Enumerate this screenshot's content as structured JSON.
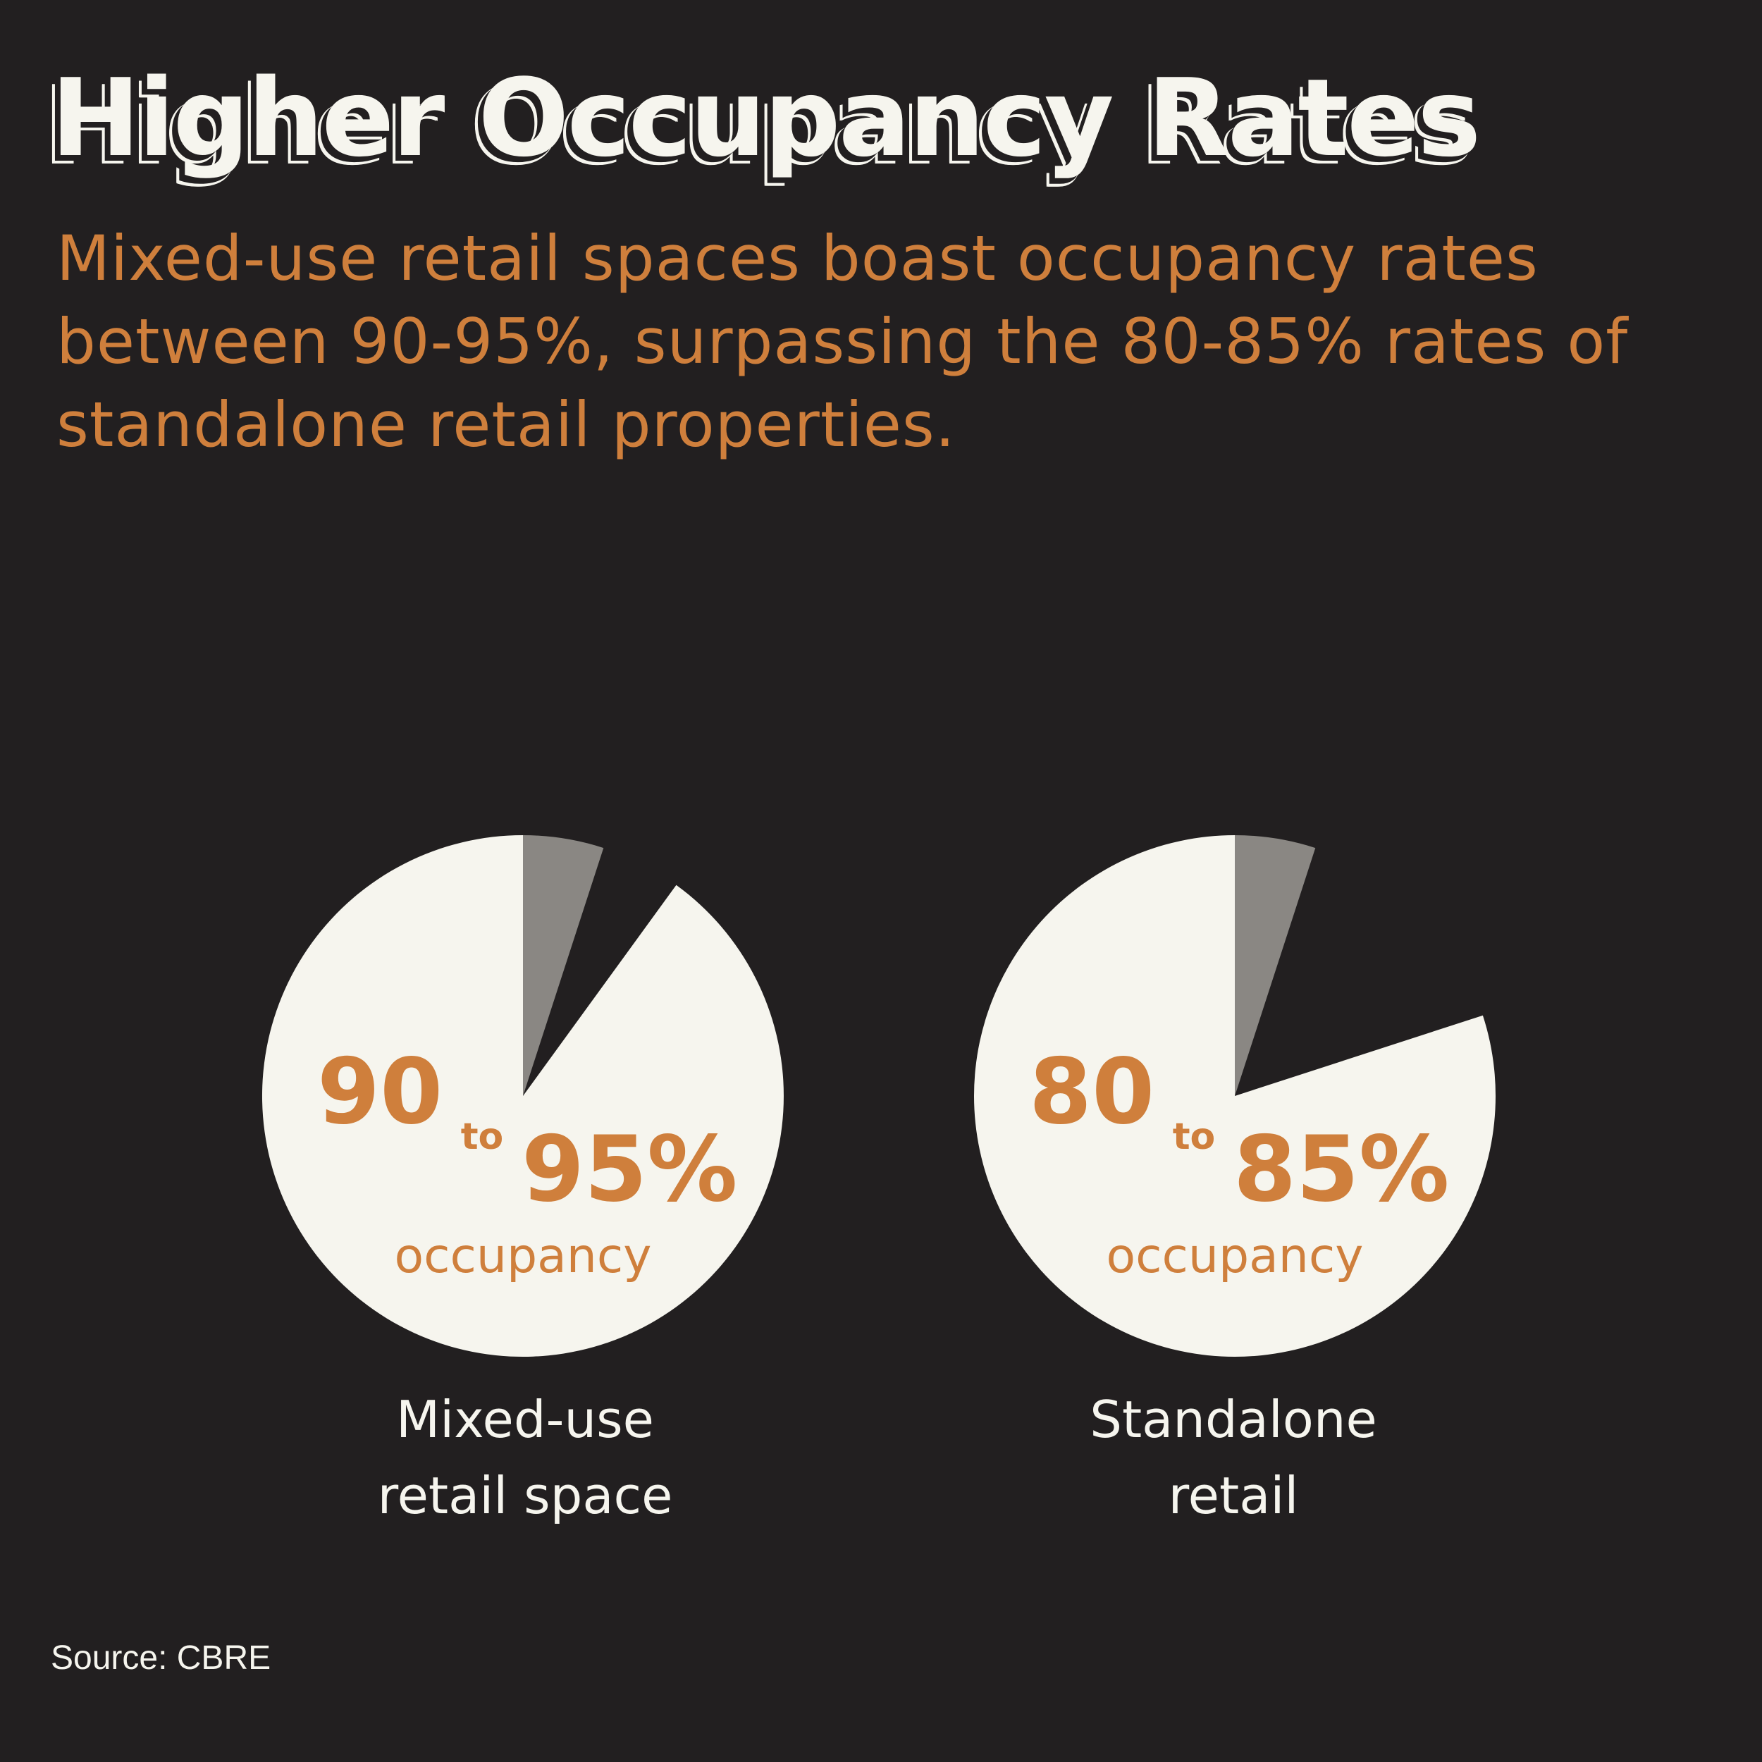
{
  "title": "Higher Occupancy Rates",
  "subtitle": "Mixed-use retail spaces boast occupancy rates between 90-95%, surpassing the 80-85% rates of standalone retail properties.",
  "source_label": "Source:",
  "source_value": "CBRE",
  "colors": {
    "background": "#221f20",
    "pie_fill": "#f6f5ee",
    "range_band": "#8a8783",
    "accent": "#cf7f3c",
    "text_light": "#f6f5ee"
  },
  "chart_data": [
    {
      "type": "pie",
      "category": "Mixed-use\nretail space",
      "low": 90,
      "high": 95,
      "unit": "%",
      "low_text": "90",
      "to_text": "to",
      "high_text": "95%",
      "caption": "occupancy"
    },
    {
      "type": "pie",
      "category": "Standalone\nretail",
      "low": 80,
      "high": 85,
      "unit": "%",
      "low_text": "80",
      "to_text": "to",
      "high_text": "85%",
      "caption": "occupancy"
    }
  ]
}
